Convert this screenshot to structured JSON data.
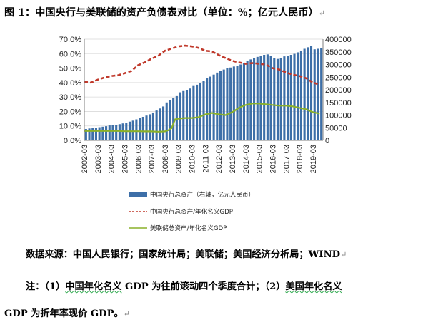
{
  "figure": {
    "title": "图 1：中国央行与美联储的资产负债表对比（单位：%；亿元人民币）",
    "title_mark": "↵",
    "return_mark": "↵",
    "source_text": "数据来源：中国人民银行；国家统计局；美联储；美国经济分析局；WIND",
    "note_text_a": "注：（1）",
    "note_text_b": "中国年化名义",
    "note_text_c": " GDP 为往前滚动四个季度合计；（2）",
    "note_text_d": "美国年化名义",
    "note_text_e": "GDP 为折年率现价 GDP。"
  },
  "colors": {
    "bar": "#3d6fa8",
    "china_ratio": "#c0392b",
    "us_ratio": "#8ab02a",
    "axis": "#7f7f7f",
    "grid": "#d9d9d9"
  },
  "chart_data": {
    "type": "bar",
    "x_tick_labels": [
      "2002-03",
      "2003-03",
      "2004-03",
      "2005-03",
      "2006-03",
      "2007-03",
      "2008-03",
      "2009-03",
      "2010-03",
      "2011-03",
      "2012-03",
      "2013-03",
      "2014-03",
      "2015-03",
      "2016-03",
      "2017-03",
      "2018-03",
      "2019-03"
    ],
    "y_left_ticks": [
      "0.0%",
      "10.0%",
      "20.0%",
      "30.0%",
      "40.0%",
      "50.0%",
      "60.0%",
      "70.0%"
    ],
    "y_right_ticks": [
      "0",
      "50000",
      "100000",
      "150000",
      "200000",
      "250000",
      "300000",
      "350000",
      "400000"
    ],
    "y_left_lim": [
      0,
      70
    ],
    "y_right_lim": [
      0,
      400000
    ],
    "x_start_year": 2002,
    "x_end_year": 2019.75,
    "legend": [
      {
        "label": "中国央行总资产（右轴，亿元人民币）",
        "kind": "bar"
      },
      {
        "label": "中国央行总资产/年化名义GDP",
        "kind": "dashed"
      },
      {
        "label": "美联储总资产/年化名义GDP",
        "kind": "solid"
      }
    ],
    "bar_series": {
      "name": "中国央行总资产（右轴，亿元人民币）",
      "axis": "right",
      "years": [
        2002,
        2002.25,
        2002.5,
        2002.75,
        2003,
        2003.25,
        2003.5,
        2003.75,
        2004,
        2004.25,
        2004.5,
        2004.75,
        2005,
        2005.25,
        2005.5,
        2005.75,
        2006,
        2006.25,
        2006.5,
        2006.75,
        2007,
        2007.25,
        2007.5,
        2007.75,
        2008,
        2008.25,
        2008.5,
        2008.75,
        2009,
        2009.25,
        2009.5,
        2009.75,
        2010,
        2010.25,
        2010.5,
        2010.75,
        2011,
        2011.25,
        2011.5,
        2011.75,
        2012,
        2012.25,
        2012.5,
        2012.75,
        2013,
        2013.25,
        2013.5,
        2013.75,
        2014,
        2014.25,
        2014.5,
        2014.75,
        2015,
        2015.25,
        2015.5,
        2015.75,
        2016,
        2016.25,
        2016.5,
        2016.75,
        2017,
        2017.25,
        2017.5,
        2017.75,
        2018,
        2018.25,
        2018.5,
        2018.75,
        2019,
        2019.25,
        2019.5
      ],
      "values": [
        45000,
        47000,
        48000,
        50000,
        52000,
        54000,
        56000,
        59000,
        60000,
        62000,
        64000,
        67000,
        70000,
        74000,
        78000,
        83000,
        88000,
        93000,
        98000,
        103000,
        110000,
        118000,
        126000,
        134000,
        150000,
        160000,
        168000,
        175000,
        190000,
        195000,
        200000,
        205000,
        215000,
        220000,
        228000,
        235000,
        245000,
        252000,
        260000,
        268000,
        275000,
        280000,
        285000,
        288000,
        292000,
        295000,
        300000,
        305000,
        315000,
        320000,
        325000,
        330000,
        335000,
        338000,
        340000,
        335000,
        325000,
        322000,
        325000,
        332000,
        335000,
        338000,
        342000,
        348000,
        355000,
        362000,
        368000,
        372000,
        360000,
        362000,
        365000
      ]
    },
    "line_series": [
      {
        "name": "中国央行总资产/年化名义GDP",
        "axis": "left",
        "style": "dashed",
        "x": [
          2002,
          2002.5,
          2003,
          2003.5,
          2004,
          2004.5,
          2005,
          2005.5,
          2006,
          2006.5,
          2007,
          2007.5,
          2008,
          2008.5,
          2009,
          2009.5,
          2010,
          2010.5,
          2011,
          2011.5,
          2012,
          2012.5,
          2013,
          2013.5,
          2014,
          2014.5,
          2015,
          2015.5,
          2016,
          2016.5,
          2017,
          2017.5,
          2018,
          2018.5,
          2019,
          2019.5
        ],
        "y": [
          40.5,
          40.0,
          42.0,
          43.5,
          44.5,
          45.0,
          46.5,
          48.0,
          52.0,
          54.0,
          56.5,
          58.5,
          62.0,
          63.5,
          65.0,
          65.5,
          65.0,
          64.0,
          62.0,
          61.5,
          59.0,
          57.0,
          55.0,
          54.0,
          53.0,
          53.5,
          53.0,
          52.5,
          50.0,
          49.0,
          47.0,
          45.5,
          44.5,
          43.0,
          40.0,
          38.5
        ]
      },
      {
        "name": "美联储总资产/年化名义GDP",
        "axis": "left",
        "style": "solid",
        "x": [
          2002,
          2002.5,
          2003,
          2003.5,
          2004,
          2004.5,
          2005,
          2005.5,
          2006,
          2006.5,
          2007,
          2007.5,
          2008,
          2008.25,
          2008.5,
          2008.75,
          2009,
          2009.5,
          2010,
          2010.5,
          2011,
          2011.5,
          2012,
          2012.5,
          2013,
          2013.5,
          2014,
          2014.5,
          2015,
          2015.5,
          2016,
          2016.5,
          2017,
          2017.5,
          2018,
          2018.5,
          2019,
          2019.5
        ],
        "y": [
          6.5,
          6.5,
          6.5,
          6.5,
          6.5,
          6.5,
          6.3,
          6.3,
          6.3,
          6.2,
          6.2,
          6.0,
          6.2,
          7.0,
          8.5,
          14.5,
          15.0,
          15.5,
          15.5,
          16.0,
          18.0,
          19.0,
          18.0,
          17.5,
          19.5,
          22.5,
          24.5,
          25.5,
          25.5,
          25.0,
          24.5,
          24.0,
          24.0,
          23.5,
          22.5,
          21.5,
          19.5,
          18.5
        ]
      }
    ]
  }
}
